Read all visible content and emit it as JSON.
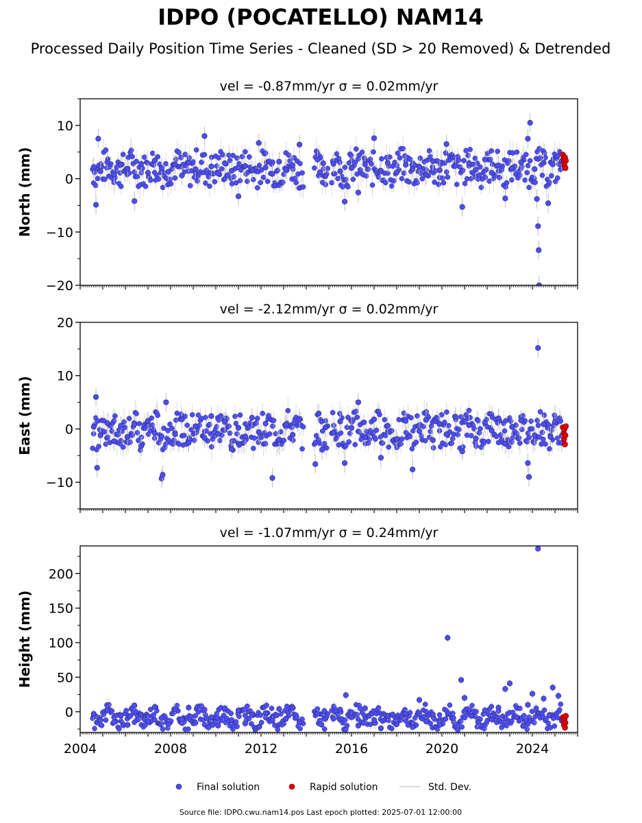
{
  "figure": {
    "title": "IDPO (POCATELLO) NAM14",
    "subtitle": "Processed Daily Position Time Series - Cleaned (SD > 20 Removed) & Detrended",
    "footer": "Source file: IDPO.cwu.nam14.pos  Last epoch plotted: 2025-07-01 12:00:00"
  },
  "legend": {
    "final": "Final solution",
    "rapid": "Rapid solution",
    "sd": "Std. Dev."
  },
  "colors": {
    "final": "#4d4dff",
    "final_edge": "#222244",
    "rapid": "#e00000",
    "sd": "#bbbbbb"
  },
  "chart_data": [
    {
      "type": "scatter",
      "panel": "north",
      "title": "vel = -0.87mm/yr   σ = 0.02mm/yr",
      "ylabel": "North (mm)",
      "ylim": [
        -20,
        15
      ],
      "yticks": [
        -20,
        -10,
        0,
        10
      ],
      "ytick_labels": [
        "−20",
        "−10",
        "0",
        "10"
      ],
      "xlim": [
        2004.0,
        2026.0
      ],
      "xticks": [
        2004,
        2008,
        2012,
        2016,
        2020,
        2024
      ],
      "xtick_labels": [],
      "series": [
        {
          "name": "Final solution",
          "points": [
            [
              2004.6,
              2.2
            ],
            [
              2004.7,
              -4.9
            ],
            [
              2004.8,
              7.5
            ],
            [
              2004.9,
              1.4
            ],
            [
              2005.2,
              3.1
            ],
            [
              2005.5,
              0.8
            ],
            [
              2005.8,
              2.6
            ],
            [
              2006.1,
              1.9
            ],
            [
              2006.4,
              -4.2
            ],
            [
              2006.7,
              2.8
            ],
            [
              2007.0,
              1.1
            ],
            [
              2007.3,
              3.4
            ],
            [
              2007.6,
              2.0
            ],
            [
              2007.9,
              1.3
            ],
            [
              2008.2,
              2.7
            ],
            [
              2008.5,
              0.6
            ],
            [
              2008.8,
              3.0
            ],
            [
              2009.1,
              1.8
            ],
            [
              2009.5,
              8.0
            ],
            [
              2009.8,
              2.3
            ],
            [
              2010.1,
              1.0
            ],
            [
              2010.4,
              2.9
            ],
            [
              2010.7,
              1.5
            ],
            [
              2011.0,
              -3.3
            ],
            [
              2011.3,
              2.4
            ],
            [
              2011.6,
              1.6
            ],
            [
              2011.9,
              6.7
            ],
            [
              2012.2,
              2.1
            ],
            [
              2012.5,
              0.9
            ],
            [
              2012.8,
              3.2
            ],
            [
              2013.1,
              1.7
            ],
            [
              2013.4,
              2.5
            ],
            [
              2013.7,
              6.4
            ],
            [
              2014.5,
              3.6
            ],
            [
              2014.6,
              1.2
            ],
            [
              2014.75,
              2.9
            ],
            [
              2014.85,
              0.5
            ],
            [
              2015.2,
              2.8
            ],
            [
              2015.5,
              1.4
            ],
            [
              2015.7,
              -4.3
            ],
            [
              2016.0,
              2.0
            ],
            [
              2016.3,
              -2.6
            ],
            [
              2016.6,
              2.7
            ],
            [
              2017.0,
              7.6
            ],
            [
              2017.3,
              1.5
            ],
            [
              2017.6,
              3.0
            ],
            [
              2018.0,
              1.2
            ],
            [
              2018.4,
              2.6
            ],
            [
              2018.7,
              1.8
            ],
            [
              2019.0,
              2.2
            ],
            [
              2019.3,
              0.7
            ],
            [
              2019.6,
              3.3
            ],
            [
              2019.9,
              1.6
            ],
            [
              2020.2,
              6.5
            ],
            [
              2020.6,
              2.4
            ],
            [
              2020.9,
              -5.3
            ],
            [
              2021.2,
              2.9
            ],
            [
              2021.5,
              1.7
            ],
            [
              2021.9,
              3.6
            ],
            [
              2022.2,
              1.1
            ],
            [
              2022.5,
              2.5
            ],
            [
              2022.8,
              -3.7
            ],
            [
              2023.1,
              2.0
            ],
            [
              2023.5,
              3.1
            ],
            [
              2023.8,
              7.5
            ],
            [
              2023.9,
              10.5
            ],
            [
              2024.1,
              1.8
            ],
            [
              2024.2,
              -3.8
            ],
            [
              2024.25,
              -8.9
            ],
            [
              2024.28,
              -13.4
            ],
            [
              2024.3,
              -20.0
            ],
            [
              2024.5,
              3.0
            ],
            [
              2024.7,
              -4.6
            ],
            [
              2024.9,
              2.7
            ],
            [
              2025.1,
              4.2
            ],
            [
              2025.3,
              3.3
            ]
          ]
        },
        {
          "name": "Rapid solution",
          "points": [
            [
              2025.35,
              4.5
            ],
            [
              2025.38,
              3.8
            ],
            [
              2025.4,
              3.1
            ],
            [
              2025.42,
              2.5
            ],
            [
              2025.44,
              4.0
            ],
            [
              2025.46,
              2.0
            ],
            [
              2025.48,
              3.4
            ]
          ]
        }
      ]
    },
    {
      "type": "scatter",
      "panel": "east",
      "title": "vel = -2.12mm/yr   σ = 0.02mm/yr",
      "ylabel": "East (mm)",
      "ylim": [
        -15,
        20
      ],
      "yticks": [
        -10,
        0,
        10,
        20
      ],
      "ytick_labels": [
        "−10",
        "0",
        "10",
        "20"
      ],
      "xlim": [
        2004.0,
        2026.0
      ],
      "xticks": [
        2004,
        2008,
        2012,
        2016,
        2020,
        2024
      ],
      "xtick_labels": [],
      "series": [
        {
          "name": "Final solution",
          "points": [
            [
              2004.6,
              0.4
            ],
            [
              2004.7,
              6.0
            ],
            [
              2004.75,
              -7.3
            ],
            [
              2004.9,
              -1.2
            ],
            [
              2005.2,
              1.1
            ],
            [
              2005.5,
              -2.3
            ],
            [
              2005.8,
              0.6
            ],
            [
              2006.1,
              -1.5
            ],
            [
              2006.4,
              0.9
            ],
            [
              2006.7,
              -3.2
            ],
            [
              2007.0,
              1.5
            ],
            [
              2007.3,
              -0.8
            ],
            [
              2007.6,
              -9.3
            ],
            [
              2007.65,
              -8.6
            ],
            [
              2007.8,
              5.0
            ],
            [
              2008.2,
              -1.0
            ],
            [
              2008.5,
              1.8
            ],
            [
              2008.8,
              -2.6
            ],
            [
              2009.1,
              0.5
            ],
            [
              2009.5,
              -1.7
            ],
            [
              2009.8,
              2.4
            ],
            [
              2010.1,
              -0.9
            ],
            [
              2010.4,
              1.3
            ],
            [
              2010.7,
              -3.8
            ],
            [
              2011.0,
              0.2
            ],
            [
              2011.3,
              -1.4
            ],
            [
              2011.6,
              2.1
            ],
            [
              2011.9,
              -0.6
            ],
            [
              2012.2,
              1.0
            ],
            [
              2012.5,
              -9.2
            ],
            [
              2012.8,
              -2.0
            ],
            [
              2013.1,
              0.8
            ],
            [
              2013.4,
              -1.1
            ],
            [
              2013.7,
              1.9
            ],
            [
              2014.4,
              -6.6
            ],
            [
              2014.55,
              2.9
            ],
            [
              2014.7,
              -3.9
            ],
            [
              2014.85,
              0.3
            ],
            [
              2015.2,
              -0.7
            ],
            [
              2015.5,
              1.4
            ],
            [
              2015.7,
              -6.4
            ],
            [
              2016.0,
              0.2
            ],
            [
              2016.3,
              5.0
            ],
            [
              2016.6,
              -1.6
            ],
            [
              2017.0,
              1.8
            ],
            [
              2017.3,
              -5.4
            ],
            [
              2017.6,
              0.6
            ],
            [
              2018.0,
              -1.9
            ],
            [
              2018.4,
              1.5
            ],
            [
              2018.7,
              -7.6
            ],
            [
              2019.0,
              -0.4
            ],
            [
              2019.3,
              1.7
            ],
            [
              2019.6,
              -2.1
            ],
            [
              2019.9,
              0.9
            ],
            [
              2020.2,
              -1.0
            ],
            [
              2020.6,
              2.3
            ],
            [
              2020.9,
              -4.2
            ],
            [
              2021.2,
              0.7
            ],
            [
              2021.5,
              -1.8
            ],
            [
              2021.9,
              1.2
            ],
            [
              2022.2,
              -0.3
            ],
            [
              2022.5,
              2.0
            ],
            [
              2022.8,
              -2.8
            ],
            [
              2023.1,
              0.4
            ],
            [
              2023.5,
              1.6
            ],
            [
              2023.8,
              -6.4
            ],
            [
              2023.85,
              -9.0
            ],
            [
              2024.1,
              -1.2
            ],
            [
              2024.25,
              15.2
            ],
            [
              2024.5,
              0.9
            ],
            [
              2024.8,
              -1.5
            ],
            [
              2025.0,
              1.3
            ],
            [
              2025.3,
              -2.6
            ]
          ]
        },
        {
          "name": "Rapid solution",
          "points": [
            [
              2025.35,
              0.3
            ],
            [
              2025.38,
              -0.8
            ],
            [
              2025.4,
              -1.9
            ],
            [
              2025.42,
              0.0
            ],
            [
              2025.44,
              -2.9
            ],
            [
              2025.46,
              -1.2
            ],
            [
              2025.48,
              0.5
            ]
          ]
        }
      ]
    },
    {
      "type": "scatter",
      "panel": "height",
      "title": "vel = -1.07mm/yr   σ = 0.24mm/yr",
      "ylabel": "Height (mm)",
      "ylim": [
        -30,
        240
      ],
      "yticks": [
        0,
        50,
        100,
        150,
        200
      ],
      "ytick_labels": [
        "0",
        "50",
        "100",
        "150",
        "200"
      ],
      "xlim": [
        2004.0,
        2026.0
      ],
      "xticks": [
        2004,
        2008,
        2012,
        2016,
        2020,
        2024
      ],
      "xtick_labels": [
        "2004",
        "2008",
        "2012",
        "2016",
        "2020",
        "2024"
      ],
      "series": [
        {
          "name": "Final solution",
          "points": [
            [
              2004.6,
              -3.0
            ],
            [
              2004.9,
              -12.0
            ],
            [
              2005.2,
              2.0
            ],
            [
              2005.5,
              -15.0
            ],
            [
              2005.8,
              -6.0
            ],
            [
              2006.1,
              -19.0
            ],
            [
              2006.4,
              9.0
            ],
            [
              2006.7,
              -4.0
            ],
            [
              2007.0,
              -14.0
            ],
            [
              2007.3,
              7.0
            ],
            [
              2007.6,
              -9.0
            ],
            [
              2007.9,
              -18.0
            ],
            [
              2008.2,
              4.0
            ],
            [
              2008.5,
              -11.0
            ],
            [
              2008.8,
              6.0
            ],
            [
              2009.1,
              -16.0
            ],
            [
              2009.5,
              3.0
            ],
            [
              2009.8,
              -8.0
            ],
            [
              2010.1,
              -20.0
            ],
            [
              2010.4,
              5.0
            ],
            [
              2010.7,
              -12.0
            ],
            [
              2011.0,
              2.0
            ],
            [
              2011.3,
              -17.0
            ],
            [
              2011.6,
              -4.0
            ],
            [
              2011.9,
              -22.0
            ],
            [
              2012.2,
              -2.0
            ],
            [
              2012.5,
              -13.0
            ],
            [
              2012.8,
              4.0
            ],
            [
              2013.1,
              -10.0
            ],
            [
              2013.4,
              6.0
            ],
            [
              2013.7,
              -15.0
            ],
            [
              2014.5,
              -3.0
            ],
            [
              2014.65,
              -18.0
            ],
            [
              2014.8,
              1.0
            ],
            [
              2015.2,
              -10.0
            ],
            [
              2015.5,
              3.0
            ],
            [
              2015.75,
              24.0
            ],
            [
              2016.0,
              -8.0
            ],
            [
              2016.3,
              -20.0
            ],
            [
              2016.6,
              5.0
            ],
            [
              2017.0,
              -12.0
            ],
            [
              2017.3,
              -24.0
            ],
            [
              2017.6,
              -6.0
            ],
            [
              2018.0,
              -18.0
            ],
            [
              2018.4,
              -3.0
            ],
            [
              2018.7,
              -22.0
            ],
            [
              2019.0,
              17.0
            ],
            [
              2019.3,
              -14.0
            ],
            [
              2019.6,
              -4.0
            ],
            [
              2019.9,
              -19.0
            ],
            [
              2020.25,
              107.0
            ],
            [
              2020.5,
              -9.0
            ],
            [
              2020.85,
              46.0
            ],
            [
              2021.0,
              20.0
            ],
            [
              2021.3,
              -6.0
            ],
            [
              2021.6,
              -15.0
            ],
            [
              2021.9,
              2.0
            ],
            [
              2022.2,
              -11.0
            ],
            [
              2022.5,
              6.0
            ],
            [
              2022.8,
              33.0
            ],
            [
              2023.0,
              41.0
            ],
            [
              2023.3,
              -8.0
            ],
            [
              2023.6,
              -20.0
            ],
            [
              2023.8,
              10.0
            ],
            [
              2024.0,
              26.0
            ],
            [
              2024.25,
              236.0
            ],
            [
              2024.5,
              19.0
            ],
            [
              2024.75,
              -5.0
            ],
            [
              2024.9,
              35.0
            ],
            [
              2025.15,
              23.0
            ],
            [
              2025.3,
              -13.0
            ]
          ]
        },
        {
          "name": "Rapid solution",
          "points": [
            [
              2025.35,
              -8.0
            ],
            [
              2025.38,
              -14.0
            ],
            [
              2025.4,
              -19.0
            ],
            [
              2025.42,
              -11.0
            ],
            [
              2025.44,
              -23.0
            ],
            [
              2025.46,
              -16.0
            ],
            [
              2025.48,
              -6.0
            ]
          ]
        }
      ]
    }
  ]
}
